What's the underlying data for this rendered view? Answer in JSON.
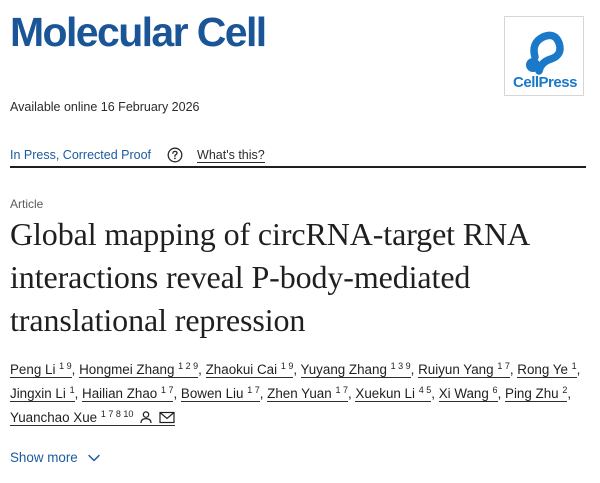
{
  "journal": {
    "title": "Molecular Cell",
    "publisher_logo_text": "CellPress"
  },
  "availability": "Available online 16 February 2026",
  "status": {
    "label": "In Press, Corrected Proof",
    "help_link": "What's this?"
  },
  "article": {
    "type": "Article",
    "title": "Global mapping of circRNA-target RNA interactions reveal P-body-mediated translational repression"
  },
  "authors": [
    {
      "name": "Peng Li",
      "affiliations": "1 9"
    },
    {
      "name": "Hongmei Zhang",
      "affiliations": "1 2 9"
    },
    {
      "name": "Zhaokui Cai",
      "affiliations": "1 9"
    },
    {
      "name": "Yuyang Zhang",
      "affiliations": "1 3 9"
    },
    {
      "name": "Ruiyun Yang",
      "affiliations": "1 7"
    },
    {
      "name": "Rong Ye",
      "affiliations": "1"
    },
    {
      "name": "Jingxin Li",
      "affiliations": "1"
    },
    {
      "name": "Hailian Zhao",
      "affiliations": "1 7"
    },
    {
      "name": "Bowen Liu",
      "affiliations": "1 7"
    },
    {
      "name": "Zhen Yuan",
      "affiliations": "1 7"
    },
    {
      "name": "Xuekun Li",
      "affiliations": "4 5"
    },
    {
      "name": "Xi Wang",
      "affiliations": "6"
    },
    {
      "name": "Ping Zhu",
      "affiliations": "2"
    },
    {
      "name": "Yuanchao Xue",
      "affiliations": "1 7 8 10",
      "icons": [
        "person-icon",
        "envelope-icon"
      ]
    }
  ],
  "show_more": "Show more",
  "colors": {
    "journal_blue": "#1a5597",
    "link_blue": "#1a5b9e",
    "cellpress_blue": "#1a7ac9"
  }
}
